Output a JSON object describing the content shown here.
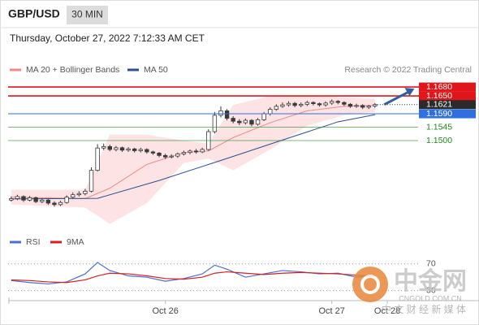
{
  "header": {
    "symbol": "GBP/USD",
    "timeframe": "30 MIN",
    "timestamp": "Thursday, October 27, 2022 7:12:33 AM CET"
  },
  "watermark": {
    "brand": "中金网",
    "site": "CNGOLD.COM.CN",
    "slogan": "中 文 财 经 新 媒 体"
  },
  "chart_data": [
    {
      "type": "candlestick",
      "source": "Research © 2022 Trading Central",
      "up_color": "#ffffff",
      "down_color": "#3a3a3a",
      "xlim": [
        -0.5,
        66
      ],
      "ylim": [
        1.1208,
        1.1713
      ],
      "ohlc": [
        [
          1.13,
          1.1312,
          1.1295,
          1.1305
        ],
        [
          1.1305,
          1.1318,
          1.13,
          1.1312
        ],
        [
          1.1312,
          1.1316,
          1.1294,
          1.13
        ],
        [
          1.13,
          1.1314,
          1.1296,
          1.1308
        ],
        [
          1.1308,
          1.1312,
          1.129,
          1.1295
        ],
        [
          1.1295,
          1.1306,
          1.129,
          1.13
        ],
        [
          1.13,
          1.1304,
          1.1284,
          1.129
        ],
        [
          1.129,
          1.1296,
          1.1278,
          1.1285
        ],
        [
          1.1285,
          1.1298,
          1.128,
          1.1292
        ],
        [
          1.1292,
          1.1316,
          1.1288,
          1.131
        ],
        [
          1.131,
          1.1326,
          1.1304,
          1.1318
        ],
        [
          1.1318,
          1.133,
          1.1312,
          1.1322
        ],
        [
          1.1322,
          1.1338,
          1.1316,
          1.133
        ],
        [
          1.133,
          1.141,
          1.1326,
          1.14
        ],
        [
          1.14,
          1.1488,
          1.1396,
          1.1475
        ],
        [
          1.1475,
          1.149,
          1.1468,
          1.148
        ],
        [
          1.148,
          1.1486,
          1.1464,
          1.147
        ],
        [
          1.147,
          1.1482,
          1.1464,
          1.1476
        ],
        [
          1.1476,
          1.148,
          1.1462,
          1.1468
        ],
        [
          1.1468,
          1.1478,
          1.1462,
          1.1472
        ],
        [
          1.1472,
          1.1476,
          1.146,
          1.1466
        ],
        [
          1.1466,
          1.1476,
          1.146,
          1.147
        ],
        [
          1.147,
          1.1474,
          1.1456,
          1.1462
        ],
        [
          1.1462,
          1.1466,
          1.1452,
          1.1458
        ],
        [
          1.1458,
          1.1462,
          1.1444,
          1.145
        ],
        [
          1.145,
          1.1456,
          1.1438,
          1.1445
        ],
        [
          1.1445,
          1.1454,
          1.144,
          1.1448
        ],
        [
          1.1448,
          1.146,
          1.1442,
          1.1455
        ],
        [
          1.1455,
          1.1466,
          1.145,
          1.146
        ],
        [
          1.146,
          1.147,
          1.1454,
          1.1465
        ],
        [
          1.1465,
          1.1472,
          1.1456,
          1.1462
        ],
        [
          1.1462,
          1.1476,
          1.1458,
          1.147
        ],
        [
          1.147,
          1.1538,
          1.1466,
          1.153
        ],
        [
          1.153,
          1.1596,
          1.1524,
          1.1585
        ],
        [
          1.1585,
          1.1615,
          1.1578,
          1.16
        ],
        [
          1.16,
          1.1606,
          1.1568,
          1.1575
        ],
        [
          1.1575,
          1.1582,
          1.1558,
          1.1565
        ],
        [
          1.1565,
          1.1572,
          1.1552,
          1.156
        ],
        [
          1.156,
          1.1574,
          1.1554,
          1.1568
        ],
        [
          1.1568,
          1.1572,
          1.1548,
          1.1555
        ],
        [
          1.1555,
          1.1576,
          1.155,
          1.157
        ],
        [
          1.157,
          1.1596,
          1.1566,
          1.159
        ],
        [
          1.159,
          1.1612,
          1.1584,
          1.1605
        ],
        [
          1.1605,
          1.1622,
          1.16,
          1.1615
        ],
        [
          1.1615,
          1.1628,
          1.161,
          1.162
        ],
        [
          1.162,
          1.1632,
          1.1614,
          1.1625
        ],
        [
          1.1625,
          1.163,
          1.1612,
          1.1618
        ],
        [
          1.1618,
          1.1628,
          1.1612,
          1.1622
        ],
        [
          1.1622,
          1.1634,
          1.1616,
          1.1628
        ],
        [
          1.1628,
          1.1632,
          1.1618,
          1.1624
        ],
        [
          1.1624,
          1.1628,
          1.1614,
          1.162
        ],
        [
          1.162,
          1.1632,
          1.1614,
          1.1626
        ],
        [
          1.1626,
          1.1638,
          1.162,
          1.1632
        ],
        [
          1.1632,
          1.1636,
          1.1622,
          1.1628
        ],
        [
          1.1628,
          1.1632,
          1.1616,
          1.1622
        ],
        [
          1.1622,
          1.1626,
          1.161,
          1.1615
        ],
        [
          1.1615,
          1.1624,
          1.161,
          1.1618
        ],
        [
          1.1618,
          1.1622,
          1.1606,
          1.1612
        ],
        [
          1.1612,
          1.162,
          1.1606,
          1.1616
        ],
        [
          1.1616,
          1.1626,
          1.161,
          1.1621
        ]
      ],
      "series": [
        {
          "name": "MA 20 + Bollinger Bands",
          "color": "#f08a8a",
          "band_color": "#fde3e3",
          "x": [
            0,
            12,
            16,
            22,
            28,
            32,
            36,
            42,
            48,
            54,
            59
          ],
          "values": [
            1.131,
            1.1305,
            1.134,
            1.142,
            1.146,
            1.1465,
            1.151,
            1.156,
            1.16,
            1.1615,
            1.1618
          ],
          "upper": [
            1.1335,
            1.1335,
            1.152,
            1.152,
            1.15,
            1.149,
            1.162,
            1.165,
            1.165,
            1.1645,
            1.164
          ],
          "lower": [
            1.1285,
            1.1275,
            1.122,
            1.129,
            1.1425,
            1.144,
            1.14,
            1.147,
            1.155,
            1.1585,
            1.1596
          ]
        },
        {
          "name": "MA 50",
          "color": "#2c4f8f",
          "x": [
            0,
            14,
            24,
            35,
            43,
            53,
            59
          ],
          "values": [
            1.1304,
            1.1306,
            1.1366,
            1.144,
            1.1495,
            1.1563,
            1.1587
          ]
        }
      ],
      "levels": [
        {
          "value": 1.168,
          "label": "1.1680",
          "color": "#e0161b",
          "style": "box"
        },
        {
          "value": 1.165,
          "label": "1.1650",
          "color": "#e0161b",
          "style": "box"
        },
        {
          "value": 1.1621,
          "label": "1.1621",
          "color": "#2b2b2b",
          "style": "current"
        },
        {
          "value": 1.159,
          "label": "1.1590",
          "color": "#2f6fe0",
          "style": "box"
        },
        {
          "value": 1.1545,
          "label": "1.1545",
          "color": "#1e8a1e",
          "style": "text"
        },
        {
          "value": 1.15,
          "label": "1.1500",
          "color": "#1e8a1e",
          "style": "text"
        }
      ]
    },
    {
      "type": "line",
      "xlim": [
        -0.5,
        66
      ],
      "ylim": [
        15,
        100
      ],
      "yticks": [
        30,
        70
      ],
      "xticks": [
        {
          "value": 25,
          "label": "Oct 26"
        },
        {
          "value": 52,
          "label": "Oct 27"
        },
        {
          "value": 61,
          "label": "Oct 28"
        }
      ],
      "series": [
        {
          "name": "RSI",
          "color": "#4a6fd4",
          "x": [
            0,
            3,
            6,
            9,
            12,
            14,
            16,
            19,
            22,
            25,
            28,
            31,
            33,
            35,
            38,
            41,
            44,
            47,
            50,
            53,
            56,
            59
          ],
          "values": [
            45,
            42,
            40,
            43,
            55,
            72,
            60,
            52,
            50,
            44,
            48,
            55,
            68,
            62,
            50,
            55,
            60,
            58,
            55,
            56,
            50,
            52
          ]
        },
        {
          "name": "9MA",
          "color": "#d42020",
          "x": [
            0,
            3,
            6,
            9,
            12,
            14,
            16,
            19,
            22,
            25,
            28,
            31,
            33,
            35,
            38,
            41,
            44,
            47,
            50,
            53,
            56,
            59
          ],
          "values": [
            46,
            45,
            43,
            42,
            46,
            52,
            56,
            55,
            52,
            48,
            47,
            50,
            56,
            58,
            56,
            54,
            56,
            57,
            56,
            55,
            53,
            52
          ]
        }
      ]
    }
  ]
}
